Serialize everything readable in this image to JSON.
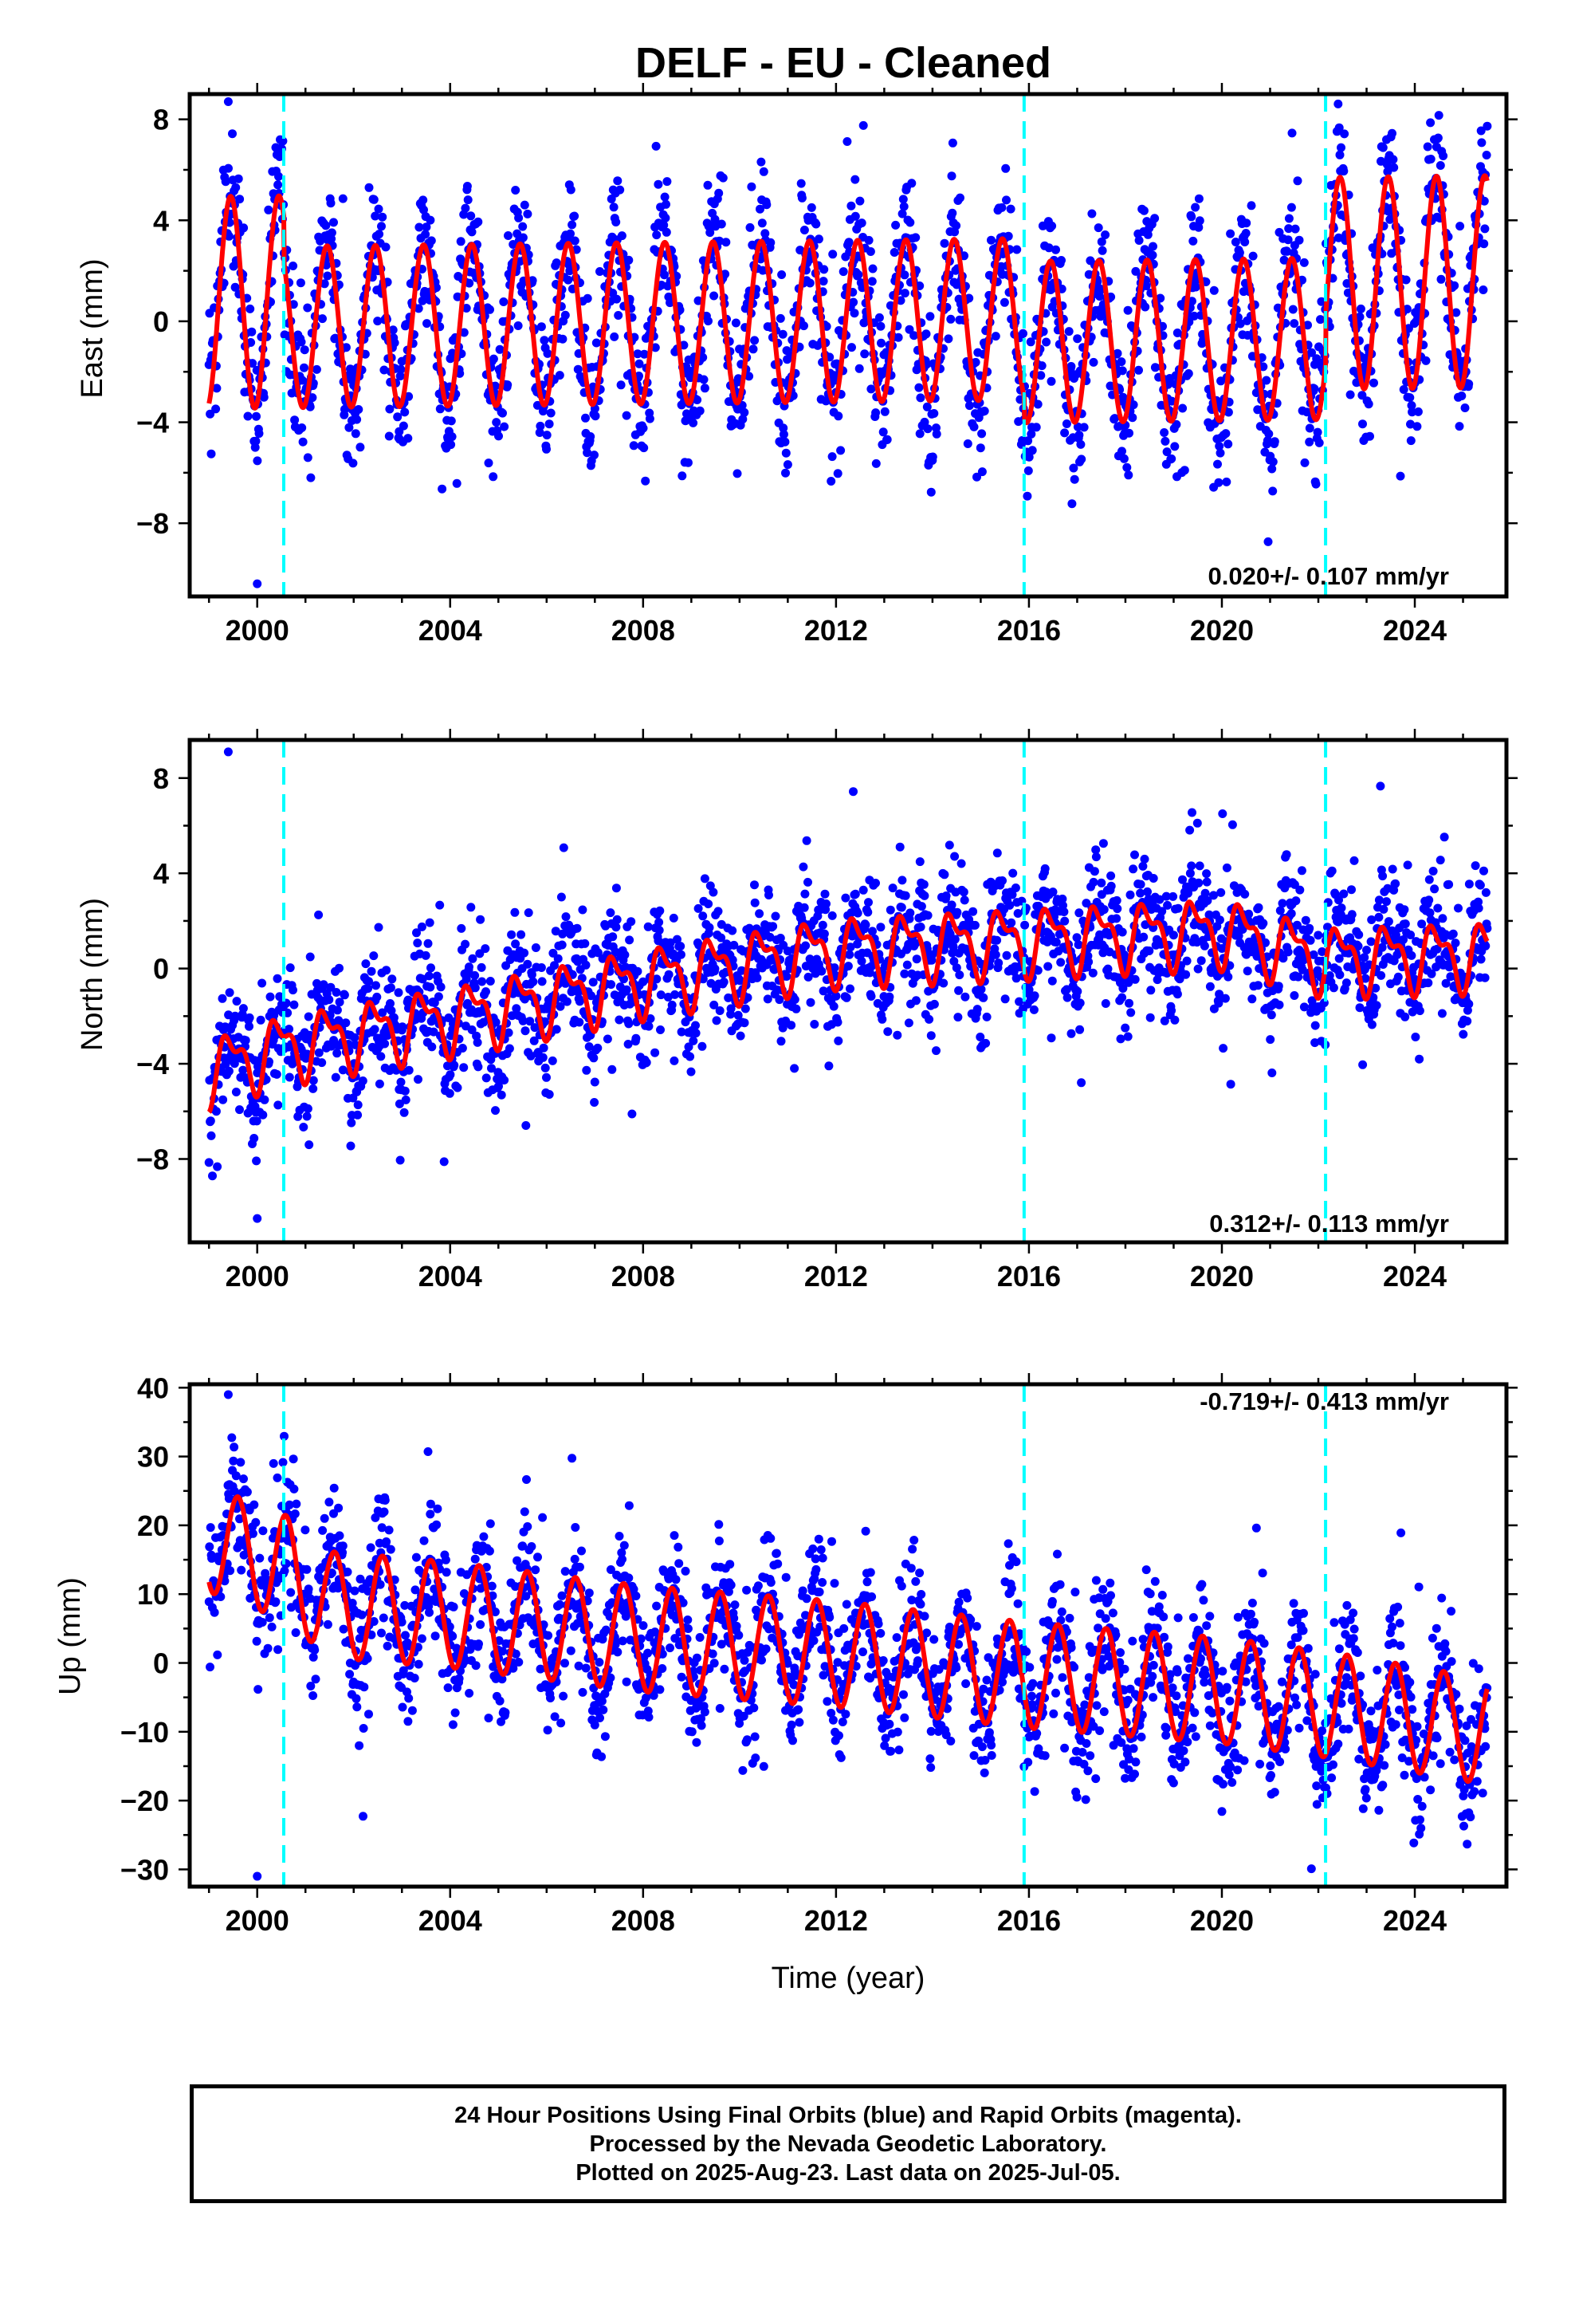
{
  "title": "DELF  - EU - Cleaned",
  "colors": {
    "final_orbits": "#0000ff",
    "rapid_orbits": "#ff00ff",
    "model": "#ff0000",
    "step_lines": "#00ffff"
  },
  "footer": {
    "line1": "24 Hour Positions Using Final Orbits (blue) and Rapid Orbits (magenta).",
    "line2": "Processed by the Nevada Geodetic Laboratory.",
    "line3": "Plotted on 2025-Aug-23. Last data on 2025-Jul-05."
  },
  "chart_data": [
    {
      "type": "scatter",
      "ylabel": "East (mm)",
      "xlabel": "",
      "xlim": [
        1998.6,
        2025.9
      ],
      "ylim": [
        -10.9,
        9.0
      ],
      "x_ticks": [
        2000,
        2004,
        2008,
        2012,
        2016,
        2020,
        2024
      ],
      "x_tick_labels": [
        "2000",
        "2004",
        "2008",
        "2012",
        "2016",
        "2020",
        "2024"
      ],
      "y_ticks": [
        -8,
        -4,
        0,
        4,
        8
      ],
      "y_tick_labels": [
        "−8",
        "−4",
        "0",
        "4",
        "8"
      ],
      "rate_label": "0.020+/- 0.107 mm/yr",
      "rate_position": "bottom-right",
      "step_epochs": [
        2000.55,
        2015.9,
        2022.15
      ],
      "data_start": 1999.0,
      "data_end": 2025.5,
      "series": [
        {
          "kind": "model",
          "seasonal_amplitude_by_segment": [
            4.2,
            3.2,
            3.2,
            4.2
          ],
          "seasonal_offset_by_segment": [
            1.0,
            0.0,
            -0.9,
            1.3
          ],
          "trend_mm_per_yr": 0.02
        },
        {
          "kind": "daily_positions",
          "scatter_sd": 1.4,
          "extreme_low": -10.4,
          "extreme_high": 8.7
        }
      ]
    },
    {
      "type": "scatter",
      "ylabel": "North (mm)",
      "xlabel": "",
      "xlim": [
        1998.6,
        2025.9
      ],
      "ylim": [
        -11.5,
        9.6
      ],
      "x_ticks": [
        2000,
        2004,
        2008,
        2012,
        2016,
        2020,
        2024
      ],
      "x_tick_labels": [
        "2000",
        "2004",
        "2008",
        "2012",
        "2016",
        "2020",
        "2024"
      ],
      "y_ticks": [
        -8,
        -4,
        0,
        4,
        8
      ],
      "y_tick_labels": [
        "−8",
        "−4",
        "0",
        "4",
        "8"
      ],
      "rate_label": "0.312+/- 0.113 mm/yr",
      "rate_position": "bottom-right",
      "step_epochs": [
        2000.55,
        2015.9,
        2022.15
      ],
      "data_start": 1999.0,
      "data_end": 2025.5,
      "series": [
        {
          "kind": "model",
          "trend_points": [
            [
              1999.0,
              -4.3
            ],
            [
              2000.55,
              -3.3
            ],
            [
              2004.3,
              -2.0
            ],
            [
              2008.0,
              -0.5
            ],
            [
              2012.0,
              0.8
            ],
            [
              2016.0,
              1.2
            ],
            [
              2020.0,
              1.6
            ],
            [
              2022.15,
              0.4
            ],
            [
              2025.5,
              0.6
            ]
          ],
          "annual_amplitude": 1.2,
          "semiannual_amplitude": 0.6
        },
        {
          "kind": "daily_positions",
          "scatter_sd": 1.3,
          "extreme_low": -10.5,
          "extreme_high": 9.1
        }
      ]
    },
    {
      "type": "scatter",
      "ylabel": "Up (mm)",
      "xlabel": "Time (year)",
      "xlim": [
        1998.6,
        2025.9
      ],
      "ylim": [
        -32.5,
        40.5
      ],
      "x_ticks": [
        2000,
        2004,
        2008,
        2012,
        2016,
        2020,
        2024
      ],
      "x_tick_labels": [
        "2000",
        "2004",
        "2008",
        "2012",
        "2016",
        "2020",
        "2024"
      ],
      "y_ticks": [
        -30,
        -20,
        -10,
        0,
        10,
        20,
        30,
        40
      ],
      "y_tick_labels": [
        "−30",
        "−20",
        "−10",
        "0",
        "10",
        "20",
        "30",
        "40"
      ],
      "rate_label": "-0.719+/- 0.413 mm/yr",
      "rate_position": "top-right",
      "step_epochs": [
        2000.55,
        2015.9,
        2022.15
      ],
      "data_start": 1999.0,
      "data_end": 2025.5,
      "series": [
        {
          "kind": "model",
          "trend_points": [
            [
              1999.0,
              18.0
            ],
            [
              2000.55,
              14.0
            ],
            [
              2001.5,
              8.5
            ],
            [
              2004.0,
              7.0
            ],
            [
              2008.0,
              3.5
            ],
            [
              2012.0,
              1.3
            ],
            [
              2016.0,
              -1.8
            ],
            [
              2020.0,
              -4.0
            ],
            [
              2022.15,
              -6.0
            ],
            [
              2025.5,
              -10.0
            ]
          ],
          "seasonal_amplitude": 7.7
        },
        {
          "kind": "daily_positions",
          "scatter_sd": 4.8,
          "extreme_low": -31.0,
          "extreme_high": 39.0
        }
      ]
    }
  ]
}
